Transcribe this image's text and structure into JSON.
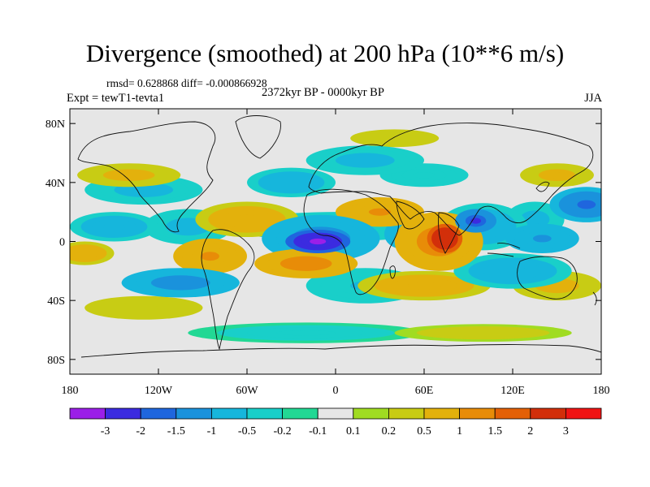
{
  "chart_data": {
    "type": "heatmap",
    "title": "Divergence (smoothed) at 200 hPa (10**6 m/s)",
    "stats_line": "rmsd= 0.628868 diff= -0.000866928",
    "subtitle": "2372kyr BP - 0000kyr BP",
    "experiment": "Expt = tewT1-tevta1",
    "season": "JJA",
    "x_axis": {
      "range": [
        -180,
        180
      ],
      "ticks": [
        -180,
        -120,
        -60,
        0,
        60,
        120,
        180
      ],
      "tick_labels": [
        "180",
        "120W",
        "60W",
        "0",
        "60E",
        "120E",
        "180"
      ]
    },
    "y_axis": {
      "range": [
        -90,
        90
      ],
      "ticks": [
        80,
        40,
        0,
        -40,
        -80
      ],
      "tick_labels": [
        "80N",
        "40N",
        "0",
        "40S",
        "80S"
      ]
    },
    "colorbar": {
      "levels": [
        "-3",
        "-2",
        "-1.5",
        "-1",
        "-0.5",
        "-0.2",
        "-0.1",
        "0.1",
        "0.2",
        "0.5",
        "1",
        "1.5",
        "2",
        "3"
      ],
      "colors": [
        "#9b1fe8",
        "#3b2be0",
        "#1f66de",
        "#1a92dc",
        "#16b6dc",
        "#19cfc9",
        "#22d894",
        "#e6e6e6",
        "#a0dc22",
        "#c8cc14",
        "#e3b10c",
        "#e88c08",
        "#e46006",
        "#d22f0a",
        "#f01414"
      ]
    },
    "field_blobs": [
      {
        "lon": -12,
        "lat": 0,
        "rx": 22,
        "ry": 8,
        "value": -3.0
      },
      {
        "lon": -10,
        "lat": 2,
        "rx": 40,
        "ry": 16,
        "value": -1.2
      },
      {
        "lon": 0,
        "lat": 10,
        "rx": 70,
        "ry": 10,
        "value": -0.5
      },
      {
        "lon": 74,
        "lat": 2,
        "rx": 12,
        "ry": 10,
        "value": 3.0
      },
      {
        "lon": 70,
        "lat": 0,
        "rx": 30,
        "ry": 20,
        "value": 1.2
      },
      {
        "lon": 95,
        "lat": 14,
        "rx": 14,
        "ry": 8,
        "value": -2.0
      },
      {
        "lon": 100,
        "lat": 10,
        "rx": 30,
        "ry": 16,
        "value": -0.8
      },
      {
        "lon": 170,
        "lat": 25,
        "rx": 25,
        "ry": 12,
        "value": -1.5
      },
      {
        "lon": 150,
        "lat": 45,
        "rx": 25,
        "ry": 8,
        "value": 0.6
      },
      {
        "lon": 135,
        "lat": 15,
        "rx": 20,
        "ry": 12,
        "value": -0.6
      },
      {
        "lon": -150,
        "lat": 10,
        "rx": 30,
        "ry": 10,
        "value": -0.8
      },
      {
        "lon": -100,
        "lat": 10,
        "rx": 30,
        "ry": 12,
        "value": -0.6
      },
      {
        "lon": -130,
        "lat": 35,
        "rx": 40,
        "ry": 10,
        "value": -0.6
      },
      {
        "lon": -140,
        "lat": 45,
        "rx": 35,
        "ry": 8,
        "value": 0.6
      },
      {
        "lon": -170,
        "lat": -8,
        "rx": 20,
        "ry": 8,
        "value": 0.9
      },
      {
        "lon": -85,
        "lat": -10,
        "rx": 25,
        "ry": 12,
        "value": 1.1
      },
      {
        "lon": -60,
        "lat": 15,
        "rx": 35,
        "ry": 12,
        "value": 0.9
      },
      {
        "lon": -105,
        "lat": -28,
        "rx": 40,
        "ry": 10,
        "value": -1.2
      },
      {
        "lon": -130,
        "lat": -45,
        "rx": 40,
        "ry": 8,
        "value": 0.4
      },
      {
        "lon": -20,
        "lat": -15,
        "rx": 35,
        "ry": 10,
        "value": 1.3
      },
      {
        "lon": 20,
        "lat": -30,
        "rx": 40,
        "ry": 12,
        "value": -0.5
      },
      {
        "lon": 60,
        "lat": -30,
        "rx": 45,
        "ry": 10,
        "value": 0.8
      },
      {
        "lon": 120,
        "lat": -20,
        "rx": 40,
        "ry": 12,
        "value": -0.8
      },
      {
        "lon": 150,
        "lat": -30,
        "rx": 30,
        "ry": 10,
        "value": 0.7
      },
      {
        "lon": 20,
        "lat": 55,
        "rx": 40,
        "ry": 10,
        "value": -0.6
      },
      {
        "lon": 40,
        "lat": 70,
        "rx": 30,
        "ry": 6,
        "value": 0.4
      },
      {
        "lon": -30,
        "lat": 40,
        "rx": 30,
        "ry": 10,
        "value": -0.8
      },
      {
        "lon": 30,
        "lat": 20,
        "rx": 30,
        "ry": 10,
        "value": 1.1
      },
      {
        "lon": 60,
        "lat": 45,
        "rx": 30,
        "ry": 8,
        "value": -0.4
      },
      {
        "lon": -20,
        "lat": -62,
        "rx": 80,
        "ry": 7,
        "value": -0.3
      },
      {
        "lon": 100,
        "lat": -62,
        "rx": 60,
        "ry": 6,
        "value": 0.3
      },
      {
        "lon": 140,
        "lat": 2,
        "rx": 25,
        "ry": 10,
        "value": -1.0
      },
      {
        "lon": 45,
        "lat": 5,
        "rx": 12,
        "ry": 10,
        "value": -1.0
      }
    ]
  }
}
